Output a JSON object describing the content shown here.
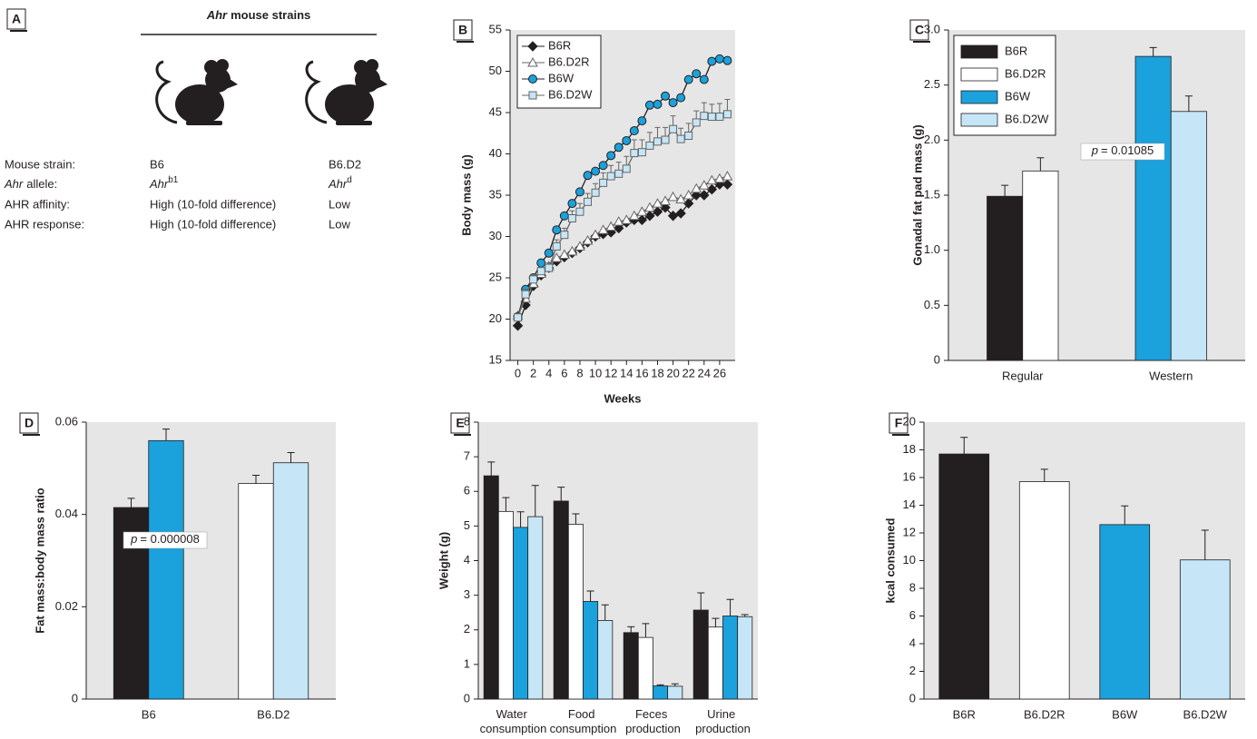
{
  "panel_a": {
    "label": "A",
    "title": {
      "gene": "Ahr",
      "text": "mouse strains"
    },
    "rows": [
      [
        "Mouse strain:",
        "B6",
        "B6.D2"
      ],
      [
        {
          "gene": "Ahr",
          "text": "allele:"
        },
        {
          "gene": "Ahr",
          "sup": "b1"
        },
        {
          "gene": "Ahr",
          "sup": "d"
        }
      ],
      [
        "AHR affinity:",
        "High (10-fold difference)",
        "Low"
      ],
      [
        "AHR response:",
        "High (10-fold difference)",
        "Low"
      ]
    ]
  },
  "chart_data": [
    {
      "type": "line",
      "label": "B",
      "xlabel": "Weeks",
      "ylabel": "Body mass (g)",
      "x": [
        0,
        1,
        2,
        3,
        4,
        5,
        6,
        7,
        8,
        9,
        10,
        11,
        12,
        13,
        14,
        15,
        16,
        17,
        18,
        19,
        20,
        21,
        22,
        23,
        24,
        25,
        26,
        27
      ],
      "xlim": [
        -1,
        28
      ],
      "xticks": [
        0,
        2,
        4,
        6,
        8,
        10,
        12,
        14,
        16,
        18,
        20,
        22,
        24,
        26
      ],
      "ylim": [
        15,
        55
      ],
      "yticks": [
        15,
        20,
        25,
        30,
        35,
        40,
        45,
        50,
        55
      ],
      "legend": "upper left",
      "series": [
        {
          "name": "B6R",
          "color": "#231f20",
          "edgecolor": "#231f20",
          "marker": "diamond",
          "values": [
            19.2,
            21.7,
            24,
            25.3,
            26.2,
            27,
            27.5,
            28,
            28.6,
            29.3,
            30,
            30.3,
            30.5,
            31,
            31.7,
            32,
            32,
            32.5,
            33,
            33.5,
            32.5,
            32.8,
            34,
            35,
            35,
            35.7,
            36.3,
            36.3
          ]
        },
        {
          "name": "B6.D2R",
          "color": "#ffffff",
          "edgecolor": "#666666",
          "marker": "triangle",
          "values": [
            20.4,
            22.5,
            24.3,
            25.5,
            26.4,
            27.4,
            27.8,
            28.2,
            28.8,
            29.5,
            30.2,
            30.8,
            31.2,
            31.8,
            32,
            32.5,
            33,
            33.5,
            34,
            34.3,
            34.8,
            34.5,
            35,
            35.8,
            36.2,
            36.8,
            37,
            37.3
          ]
        },
        {
          "name": "B6W",
          "color": "#1ba1dc",
          "edgecolor": "#231f20",
          "marker": "circle",
          "values": [
            20.3,
            23.6,
            25,
            26.8,
            28,
            30.8,
            32.5,
            34,
            35.4,
            37.4,
            37.9,
            38.6,
            39.8,
            40.8,
            41.6,
            42.8,
            44,
            45.9,
            46,
            47,
            46.2,
            46.8,
            49,
            49.7,
            49,
            51.2,
            51.5,
            51.3
          ]
        },
        {
          "name": "B6.D2W",
          "color": "#c6e6f7",
          "edgecolor": "#666666",
          "marker": "square",
          "values": [
            20.2,
            23,
            24.8,
            25.8,
            26.2,
            28.8,
            30.2,
            32.2,
            33,
            34.2,
            35.3,
            36.5,
            37.3,
            37.6,
            38.2,
            40.1,
            40.2,
            41,
            41.5,
            41.7,
            43,
            41.8,
            42.2,
            43.8,
            44.6,
            44.5,
            44.5,
            44.8
          ],
          "errors": [
            0.5,
            0.6,
            0.6,
            0.5,
            0.6,
            0.8,
            0.8,
            0.9,
            1,
            1,
            1.1,
            1.2,
            1.3,
            1.4,
            1.5,
            1.6,
            1.5,
            1.6,
            1.7,
            1.5,
            1.6,
            1.3,
            1.5,
            1.4,
            1.6,
            1.5,
            1.6,
            1.8
          ]
        }
      ]
    },
    {
      "type": "bar",
      "label": "C",
      "ylabel": "Gonadal fat pad mass (g)",
      "categories": [
        "Regular",
        "Western"
      ],
      "ylim": [
        0,
        3
      ],
      "yticks": [
        0,
        0.5,
        {
          "value": 1,
          "label": "1.0"
        },
        1.5,
        {
          "value": 2,
          "label": "2.0"
        },
        2.5,
        {
          "value": 3,
          "label": "3.0"
        }
      ],
      "legend": "upper left",
      "annotation": {
        "symbol": "p",
        "text": "= 0.01085"
      },
      "series": [
        {
          "name": "B6R",
          "color": "#231f20",
          "values": [
            1.49,
            null
          ],
          "errors": [
            0.1,
            null
          ]
        },
        {
          "name": "B6.D2R",
          "color": "#ffffff",
          "values": [
            1.72,
            null
          ],
          "errors": [
            0.12,
            null
          ]
        },
        {
          "name": "B6W",
          "color": "#1ba1dc",
          "values": [
            null,
            2.76
          ],
          "errors": [
            null,
            0.08
          ]
        },
        {
          "name": "B6.D2W",
          "color": "#c6e6f7",
          "values": [
            null,
            2.26
          ],
          "errors": [
            null,
            0.14
          ]
        }
      ]
    },
    {
      "type": "bar",
      "label": "D",
      "ylabel": "Fat mass:body mass ratio",
      "categories": [
        "B6",
        "B6.D2"
      ],
      "ylim": [
        0,
        0.06
      ],
      "yticks": [
        0,
        0.02,
        0.04,
        0.06
      ],
      "annotation": {
        "symbol": "p",
        "text": "= 0.000008"
      },
      "series": [
        {
          "color": "#231f20",
          "values": [
            0.0415,
            null
          ],
          "errors": [
            0.002,
            null
          ]
        },
        {
          "color": "#1ba1dc",
          "values": [
            0.056,
            null
          ],
          "errors": [
            0.0025,
            null
          ]
        },
        {
          "color": "#ffffff",
          "values": [
            null,
            0.0467
          ],
          "errors": [
            null,
            0.0018
          ]
        },
        {
          "color": "#c6e6f7",
          "values": [
            null,
            0.0512
          ],
          "errors": [
            null,
            0.0022
          ]
        }
      ]
    },
    {
      "type": "bar",
      "label": "E",
      "ylabel": "Weight (g)",
      "categories": [
        "Water consumption",
        "Food consumption",
        "Feces production",
        "Urine production"
      ],
      "ylim": [
        0,
        8
      ],
      "yticks": [
        0,
        1,
        2,
        3,
        4,
        5,
        6,
        7,
        8
      ],
      "series": [
        {
          "color": "#231f20",
          "values": [
            6.45,
            5.72,
            1.92,
            2.57
          ],
          "errors": [
            0.4,
            0.4,
            0.17,
            0.5
          ]
        },
        {
          "color": "#ffffff",
          "values": [
            5.42,
            5.05,
            1.78,
            2.08
          ],
          "errors": [
            0.4,
            0.3,
            0.4,
            0.25
          ]
        },
        {
          "color": "#1ba1dc",
          "values": [
            4.96,
            2.82,
            0.38,
            2.4
          ],
          "errors": [
            0.45,
            0.3,
            0.03,
            0.48
          ]
        },
        {
          "color": "#c6e6f7",
          "values": [
            5.27,
            2.27,
            0.37,
            2.38
          ],
          "errors": [
            0.9,
            0.45,
            0.07,
            0.06
          ]
        }
      ]
    },
    {
      "type": "bar",
      "label": "F",
      "ylabel": "kcal consumed",
      "categories": [
        "B6R",
        "B6.D2R",
        "B6W",
        "B6.D2W"
      ],
      "ylim": [
        0,
        20
      ],
      "yticks": [
        0,
        2,
        4,
        6,
        8,
        10,
        12,
        14,
        16,
        18,
        20
      ],
      "colors": [
        "#231f20",
        "#ffffff",
        "#1ba1dc",
        "#c6e6f7"
      ],
      "values": [
        17.7,
        15.7,
        12.6,
        10.05
      ],
      "errors": [
        1.2,
        0.9,
        1.35,
        2.15
      ]
    }
  ]
}
